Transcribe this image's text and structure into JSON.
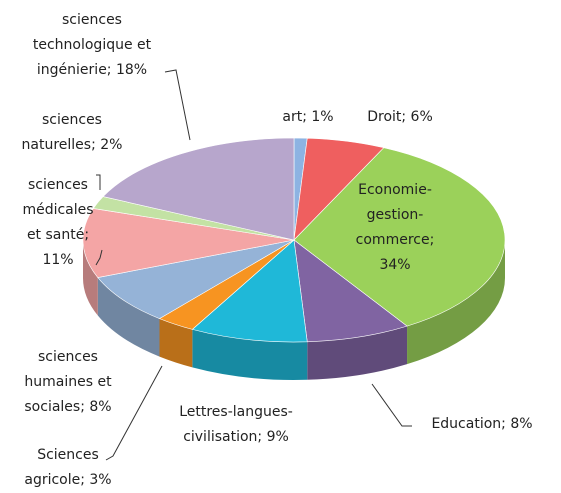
{
  "chart_data": {
    "type": "pie3d",
    "labels": [
      [
        "art; 1%"
      ],
      [
        "Droit; 6%"
      ],
      [
        "Economie-",
        "gestion-",
        "commerce;",
        "34%"
      ],
      [
        "Education; 8%"
      ],
      [
        "Lettres-langues-",
        "civilisation; 9%"
      ],
      [
        "Sciences",
        "agricole; 3%"
      ],
      [
        "sciences",
        "humaines et",
        "sociales; 8%"
      ],
      [
        "sciences",
        "médicales",
        "et santé;",
        "11%"
      ],
      [
        "sciences",
        "naturelles; 2%"
      ],
      [
        "sciences",
        "technologique et",
        "ingénierie; 18%"
      ]
    ],
    "values": [
      1,
      6,
      34,
      8,
      9,
      3,
      8,
      11,
      2,
      18
    ],
    "colors": [
      "#8db3e2",
      "#ef5f5f",
      "#9bd15a",
      "#8064a2",
      "#1fb8d8",
      "#f79421",
      "#95b3d7",
      "#f4a5a5",
      "#c3e2a4",
      "#b7a6cc"
    ]
  }
}
